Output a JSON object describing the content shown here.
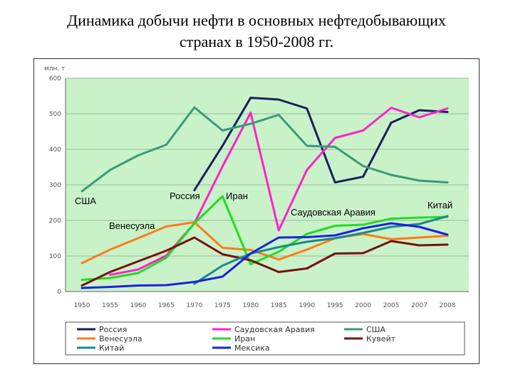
{
  "slide": {
    "title_line1": "Динамика добычи нефти в основных нефтедобывающих",
    "title_line2": "странах в 1950-2008 гг."
  },
  "chart_data": {
    "type": "line",
    "unit_label": "млн. т",
    "x": [
      "1950",
      "1955",
      "1960",
      "1965",
      "1970",
      "1975",
      "1980",
      "1985",
      "1990",
      "1995",
      "2000",
      "2005",
      "2007",
      "2008"
    ],
    "ylim": [
      0,
      600
    ],
    "yticks": [
      0,
      100,
      200,
      300,
      400,
      500,
      600
    ],
    "grid": true,
    "legend_position": "bottom",
    "series": [
      {
        "name": "Россия",
        "color": "#1a1f5e",
        "values": [
          null,
          null,
          null,
          null,
          285,
          410,
          545,
          540,
          515,
          307,
          323,
          475,
          510,
          505
        ]
      },
      {
        "name": "Саудовская Аравия",
        "color": "#ff22cc",
        "values": [
          null,
          47,
          62,
          101,
          192,
          352,
          503,
          172,
          342,
          432,
          453,
          517,
          490,
          515
        ]
      },
      {
        "name": "США",
        "color": "#3a9a7a",
        "values": [
          282,
          342,
          383,
          413,
          518,
          453,
          472,
          497,
          410,
          407,
          353,
          328,
          312,
          307
        ]
      },
      {
        "name": "Венесуэла",
        "color": "#ff7a1a",
        "values": [
          80,
          118,
          150,
          183,
          195,
          123,
          117,
          90,
          118,
          150,
          162,
          147,
          152,
          157
        ]
      },
      {
        "name": "Иран",
        "color": "#22dd22",
        "values": [
          33,
          38,
          52,
          95,
          192,
          268,
          77,
          112,
          162,
          185,
          188,
          205,
          208,
          210
        ]
      },
      {
        "name": "Кувейт",
        "color": "#7a1010",
        "values": [
          17,
          55,
          85,
          115,
          152,
          105,
          88,
          55,
          65,
          107,
          108,
          142,
          130,
          132
        ]
      },
      {
        "name": "Китай",
        "color": "#1a8a8a",
        "values": [
          null,
          null,
          null,
          null,
          22,
          73,
          107,
          125,
          140,
          150,
          165,
          182,
          190,
          212
        ]
      },
      {
        "name": "Мексика",
        "color": "#1a22dd",
        "values": [
          10,
          13,
          17,
          18,
          27,
          42,
          107,
          152,
          153,
          158,
          178,
          192,
          182,
          160
        ]
      }
    ],
    "annotations": [
      {
        "text": "США",
        "series": "США"
      },
      {
        "text": "Венесуэла",
        "series": "Венесуэла"
      },
      {
        "text": "Россия",
        "series": "Россия"
      },
      {
        "text": "Иран",
        "series": "Иран"
      },
      {
        "text": "Саудовская Аравия",
        "series": "Саудовская Аравия"
      },
      {
        "text": "Китай",
        "series": "Китай"
      }
    ]
  }
}
